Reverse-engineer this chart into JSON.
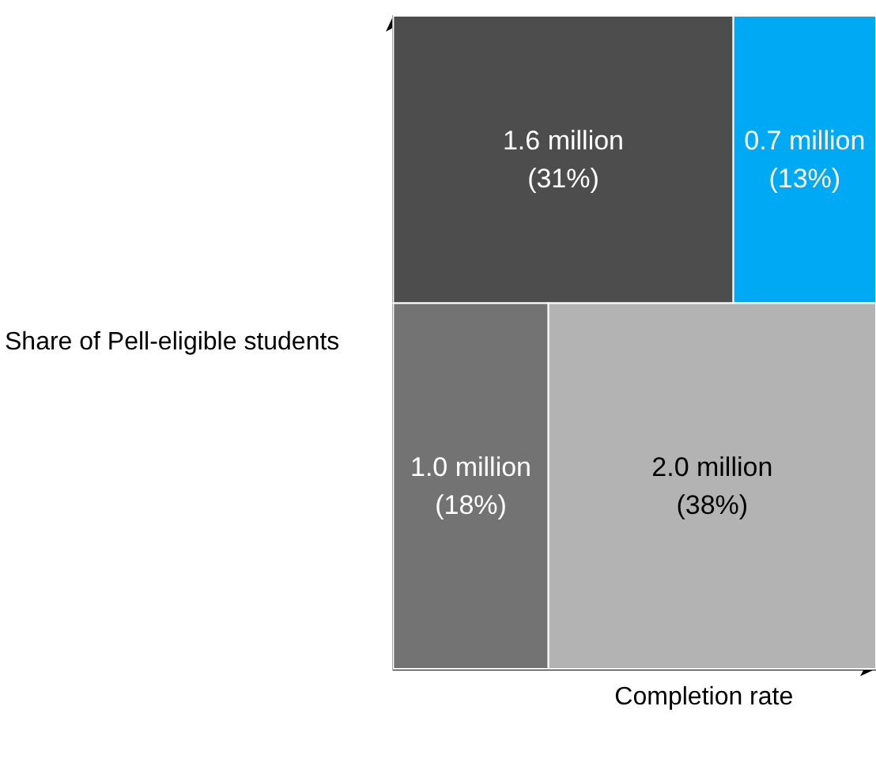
{
  "chart_data": {
    "type": "other",
    "xlabel": "Completion rate",
    "ylabel": "Share of Pell-eligible students",
    "categories": [
      null,
      null,
      null,
      null
    ],
    "values": [
      31,
      13,
      18,
      38
    ],
    "value_labels": [
      "1.6 million\n(31%)",
      "0.7 million\n(13%)",
      "1.0 million\n(18%)",
      "2.0 million\n(38%)"
    ],
    "colors": [
      "#4d4d4d",
      "#00a9f4",
      "#737373",
      "#b3b3b3"
    ]
  }
}
